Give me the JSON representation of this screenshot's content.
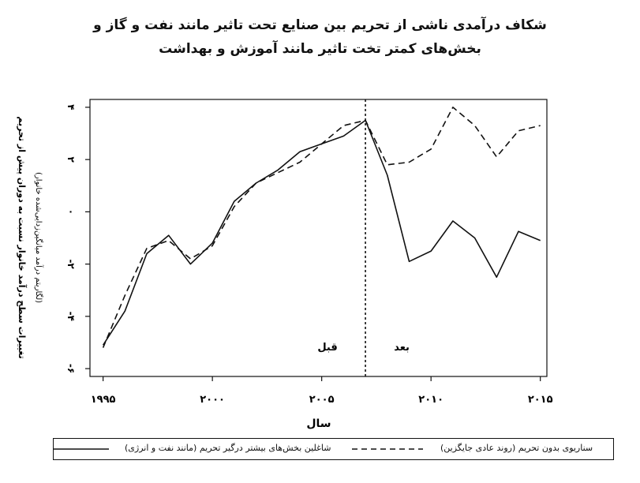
{
  "chart_data": {
    "type": "line",
    "title": "شکاف درآمدی ناشی از تحریم بین صنایع تحت تاثیر مانند نفت و گاز و",
    "subtitle": "بخش‌های کمتر تخت تاثیر مانند آموزش و بهداشت",
    "xlabel": "سال",
    "ylabel": "تغییرات سطح درآمد خانوار نسبت به دوران پیش از تحریم",
    "ylabel_sub": "(لگاریتم درآمد میانگین‌زدایی‌شده خانوار)",
    "xlim": [
      1994.4,
      2015.3
    ],
    "ylim": [
      -6.3,
      4.3
    ],
    "x_ticks": [
      1995,
      2000,
      2005,
      2010,
      2015
    ],
    "x_tick_labels": [
      "۱۹۹۵",
      "۲۰۰۰",
      "۲۰۰۵",
      "۲۰۱۰",
      "۲۰۱۵"
    ],
    "y_ticks": [
      -6,
      -4,
      -2,
      0,
      2,
      4
    ],
    "y_tick_labels": [
      "-۶",
      "-۴",
      "-۲",
      "۰",
      "۲",
      "۴"
    ],
    "sanction_year": 2007,
    "annotations": {
      "before": "قبل",
      "after": "بعد"
    },
    "x": [
      1995,
      1996,
      1997,
      1998,
      1999,
      2000,
      2001,
      2002,
      2003,
      2004,
      2005,
      2006,
      2007,
      2008,
      2009,
      2010,
      2011,
      2012,
      2013,
      2014,
      2015
    ],
    "series": [
      {
        "name": "شاغلین بخش‌های بیشتر درگیر تحریم (مانند نفت و انرژی)",
        "style": "solid",
        "values": [
          -5.1,
          -3.8,
          -1.6,
          -0.9,
          -2.0,
          -1.2,
          0.4,
          1.1,
          1.6,
          2.3,
          2.6,
          2.9,
          3.5,
          1.4,
          -1.9,
          -1.5,
          -0.35,
          -1.0,
          -2.5,
          -0.75,
          -1.1
        ]
      },
      {
        "name": "سناریوی بدون تحریم (روند عادی جایگزین)",
        "style": "dashed",
        "values": [
          -5.2,
          -3.2,
          -1.4,
          -1.1,
          -1.8,
          -1.3,
          0.2,
          1.1,
          1.5,
          1.9,
          2.6,
          3.3,
          3.5,
          1.8,
          1.9,
          2.4,
          4.0,
          3.3,
          2.1,
          3.1,
          3.3
        ]
      }
    ],
    "grid": false,
    "legend_position": "bottom"
  }
}
